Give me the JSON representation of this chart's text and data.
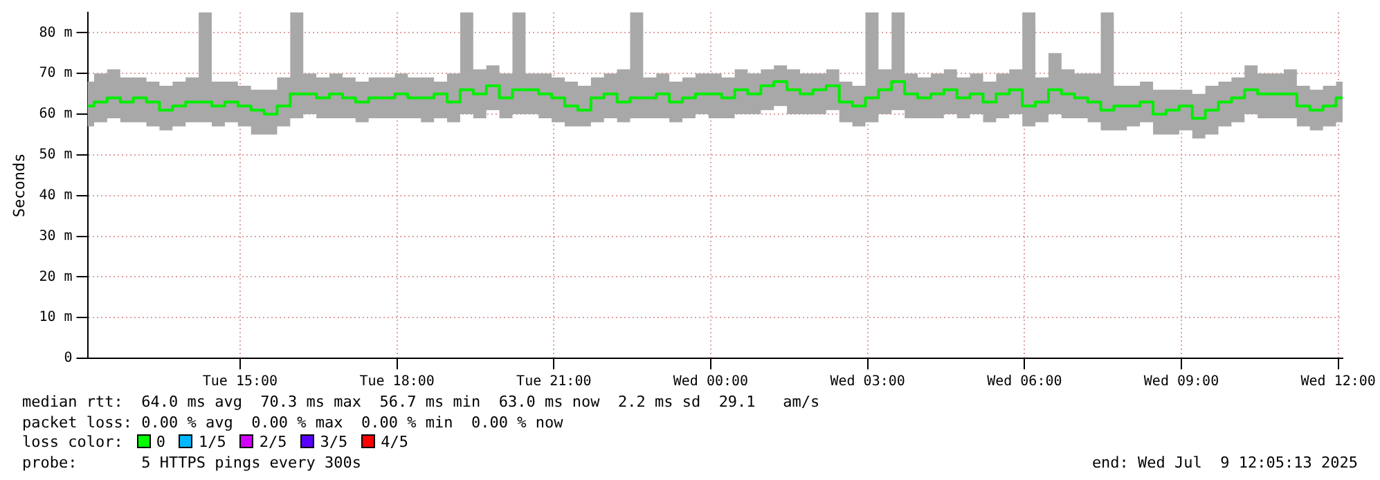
{
  "chart_data": {
    "type": "line",
    "ylabel": "Seconds",
    "x": [
      "2025-07-08T12:05",
      "2025-07-08T12:20",
      "2025-07-08T12:35",
      "2025-07-08T12:50",
      "2025-07-08T13:05",
      "2025-07-08T13:20",
      "2025-07-08T13:35",
      "2025-07-08T13:50",
      "2025-07-08T14:05",
      "2025-07-08T14:20",
      "2025-07-08T14:35",
      "2025-07-08T14:50",
      "2025-07-08T15:05",
      "2025-07-08T15:20",
      "2025-07-08T15:35",
      "2025-07-08T15:50",
      "2025-07-08T16:05",
      "2025-07-08T16:20",
      "2025-07-08T16:35",
      "2025-07-08T16:50",
      "2025-07-08T17:05",
      "2025-07-08T17:20",
      "2025-07-08T17:35",
      "2025-07-08T17:50",
      "2025-07-08T18:05",
      "2025-07-08T18:20",
      "2025-07-08T18:35",
      "2025-07-08T18:50",
      "2025-07-08T19:05",
      "2025-07-08T19:20",
      "2025-07-08T19:35",
      "2025-07-08T19:50",
      "2025-07-08T20:05",
      "2025-07-08T20:20",
      "2025-07-08T20:35",
      "2025-07-08T20:50",
      "2025-07-08T21:05",
      "2025-07-08T21:20",
      "2025-07-08T21:35",
      "2025-07-08T21:50",
      "2025-07-08T22:05",
      "2025-07-08T22:20",
      "2025-07-08T22:35",
      "2025-07-08T22:50",
      "2025-07-08T23:05",
      "2025-07-08T23:20",
      "2025-07-08T23:35",
      "2025-07-08T23:50",
      "2025-07-09T00:05",
      "2025-07-09T00:20",
      "2025-07-09T00:35",
      "2025-07-09T00:50",
      "2025-07-09T01:05",
      "2025-07-09T01:20",
      "2025-07-09T01:35",
      "2025-07-09T01:50",
      "2025-07-09T02:05",
      "2025-07-09T02:20",
      "2025-07-09T02:35",
      "2025-07-09T02:50",
      "2025-07-09T03:05",
      "2025-07-09T03:20",
      "2025-07-09T03:35",
      "2025-07-09T03:50",
      "2025-07-09T04:05",
      "2025-07-09T04:20",
      "2025-07-09T04:35",
      "2025-07-09T04:50",
      "2025-07-09T05:05",
      "2025-07-09T05:20",
      "2025-07-09T05:35",
      "2025-07-09T05:50",
      "2025-07-09T06:05",
      "2025-07-09T06:20",
      "2025-07-09T06:35",
      "2025-07-09T06:50",
      "2025-07-09T07:05",
      "2025-07-09T07:20",
      "2025-07-09T07:35",
      "2025-07-09T07:50",
      "2025-07-09T08:05",
      "2025-07-09T08:20",
      "2025-07-09T08:35",
      "2025-07-09T08:50",
      "2025-07-09T09:05",
      "2025-07-09T09:20",
      "2025-07-09T09:35",
      "2025-07-09T09:50",
      "2025-07-09T10:05",
      "2025-07-09T10:20",
      "2025-07-09T10:35",
      "2025-07-09T10:50",
      "2025-07-09T11:05",
      "2025-07-09T11:20",
      "2025-07-09T11:35",
      "2025-07-09T11:50",
      "2025-07-09T12:05"
    ],
    "series": [
      {
        "color": "#00ee00",
        "line_style": "solid",
        "values": [
          62,
          63,
          64,
          63,
          64,
          63,
          61,
          62,
          63,
          63,
          62,
          63,
          62,
          61,
          60,
          62,
          65,
          65,
          64,
          65,
          64,
          63,
          64,
          64,
          65,
          64,
          64,
          65,
          63,
          66,
          65,
          67,
          64,
          66,
          66,
          65,
          64,
          62,
          61,
          64,
          65,
          63,
          64,
          64,
          65,
          63,
          64,
          65,
          65,
          64,
          66,
          65,
          67,
          68,
          66,
          65,
          66,
          67,
          63,
          62,
          64,
          66,
          68,
          65,
          64,
          65,
          66,
          64,
          65,
          63,
          65,
          66,
          62,
          63,
          66,
          65,
          64,
          63,
          61,
          62,
          62,
          63,
          60,
          61,
          62,
          59,
          61,
          63,
          64,
          66,
          65,
          65,
          65,
          62,
          61,
          62,
          64
        ],
        "lower": [
          57,
          58,
          59,
          58,
          58,
          57,
          56,
          57,
          58,
          58,
          57,
          58,
          57,
          55,
          55,
          57,
          59,
          60,
          59,
          59,
          59,
          58,
          59,
          59,
          59,
          59,
          58,
          59,
          58,
          60,
          59,
          61,
          59,
          60,
          60,
          59,
          58,
          57,
          57,
          58,
          59,
          58,
          59,
          59,
          59,
          58,
          59,
          60,
          59,
          59,
          60,
          60,
          61,
          62,
          60,
          60,
          60,
          61,
          58,
          57,
          58,
          60,
          61,
          59,
          59,
          59,
          60,
          59,
          60,
          58,
          59,
          60,
          57,
          58,
          60,
          59,
          59,
          58,
          56,
          56,
          57,
          58,
          55,
          55,
          56,
          54,
          55,
          57,
          58,
          60,
          59,
          59,
          59,
          57,
          56,
          57,
          58
        ],
        "upper": [
          68,
          70,
          71,
          69,
          69,
          68,
          67,
          68,
          69,
          85,
          68,
          68,
          67,
          66,
          66,
          69,
          85,
          70,
          69,
          70,
          69,
          68,
          69,
          69,
          70,
          69,
          69,
          68,
          70,
          85,
          71,
          72,
          70,
          85,
          70,
          70,
          69,
          68,
          67,
          69,
          70,
          71,
          85,
          69,
          70,
          68,
          69,
          70,
          70,
          69,
          71,
          70,
          71,
          72,
          71,
          70,
          70,
          71,
          68,
          67,
          85,
          71,
          85,
          70,
          69,
          70,
          71,
          69,
          70,
          68,
          70,
          71,
          85,
          69,
          75,
          71,
          70,
          70,
          85,
          67,
          67,
          68,
          66,
          66,
          66,
          65,
          67,
          68,
          69,
          72,
          70,
          70,
          71,
          67,
          66,
          67,
          68
        ]
      }
    ],
    "xlim": [
      "2025-07-08T12:05",
      "2025-07-09T12:05"
    ],
    "xticks": [
      {
        "value": "2025-07-08T15:00",
        "label": "Tue 15:00"
      },
      {
        "value": "2025-07-08T18:00",
        "label": "Tue 18:00"
      },
      {
        "value": "2025-07-08T21:00",
        "label": "Tue 21:00"
      },
      {
        "value": "2025-07-09T00:00",
        "label": "Wed 00:00"
      },
      {
        "value": "2025-07-09T03:00",
        "label": "Wed 03:00"
      },
      {
        "value": "2025-07-09T06:00",
        "label": "Wed 06:00"
      },
      {
        "value": "2025-07-09T09:00",
        "label": "Wed 09:00"
      },
      {
        "value": "2025-07-09T12:00",
        "label": "Wed 12:00"
      }
    ],
    "ylim": [
      0,
      85
    ],
    "yticks": [
      0,
      {
        "value": 10,
        "label": "10 m"
      },
      {
        "value": 20,
        "label": "20 m"
      },
      {
        "value": 30,
        "label": "30 m"
      },
      {
        "value": 40,
        "label": "40 m"
      },
      {
        "value": 50,
        "label": "50 m"
      },
      {
        "value": 60,
        "label": "60 m"
      },
      {
        "value": 70,
        "label": "70 m"
      },
      {
        "value": 80,
        "label": "80 m"
      }
    ],
    "grid": true,
    "legend": false,
    "marker": "none",
    "annotations": [
      "median rtt:  64.0 ms avg  70.3 ms max  56.7 ms min  63.0 ms now  2.2 ms sd  29.1   am/s",
      "packet loss: 0.00 % avg  0.00 % max  0.00 % min  0.00 % now",
      "loss color:",
      "0",
      "1/5",
      "2/5",
      "3/5",
      "4/5",
      "probe:       5 HTTPS pings every 300s",
      "end: Wed Jul  9 12:05:13 2025"
    ]
  }
}
